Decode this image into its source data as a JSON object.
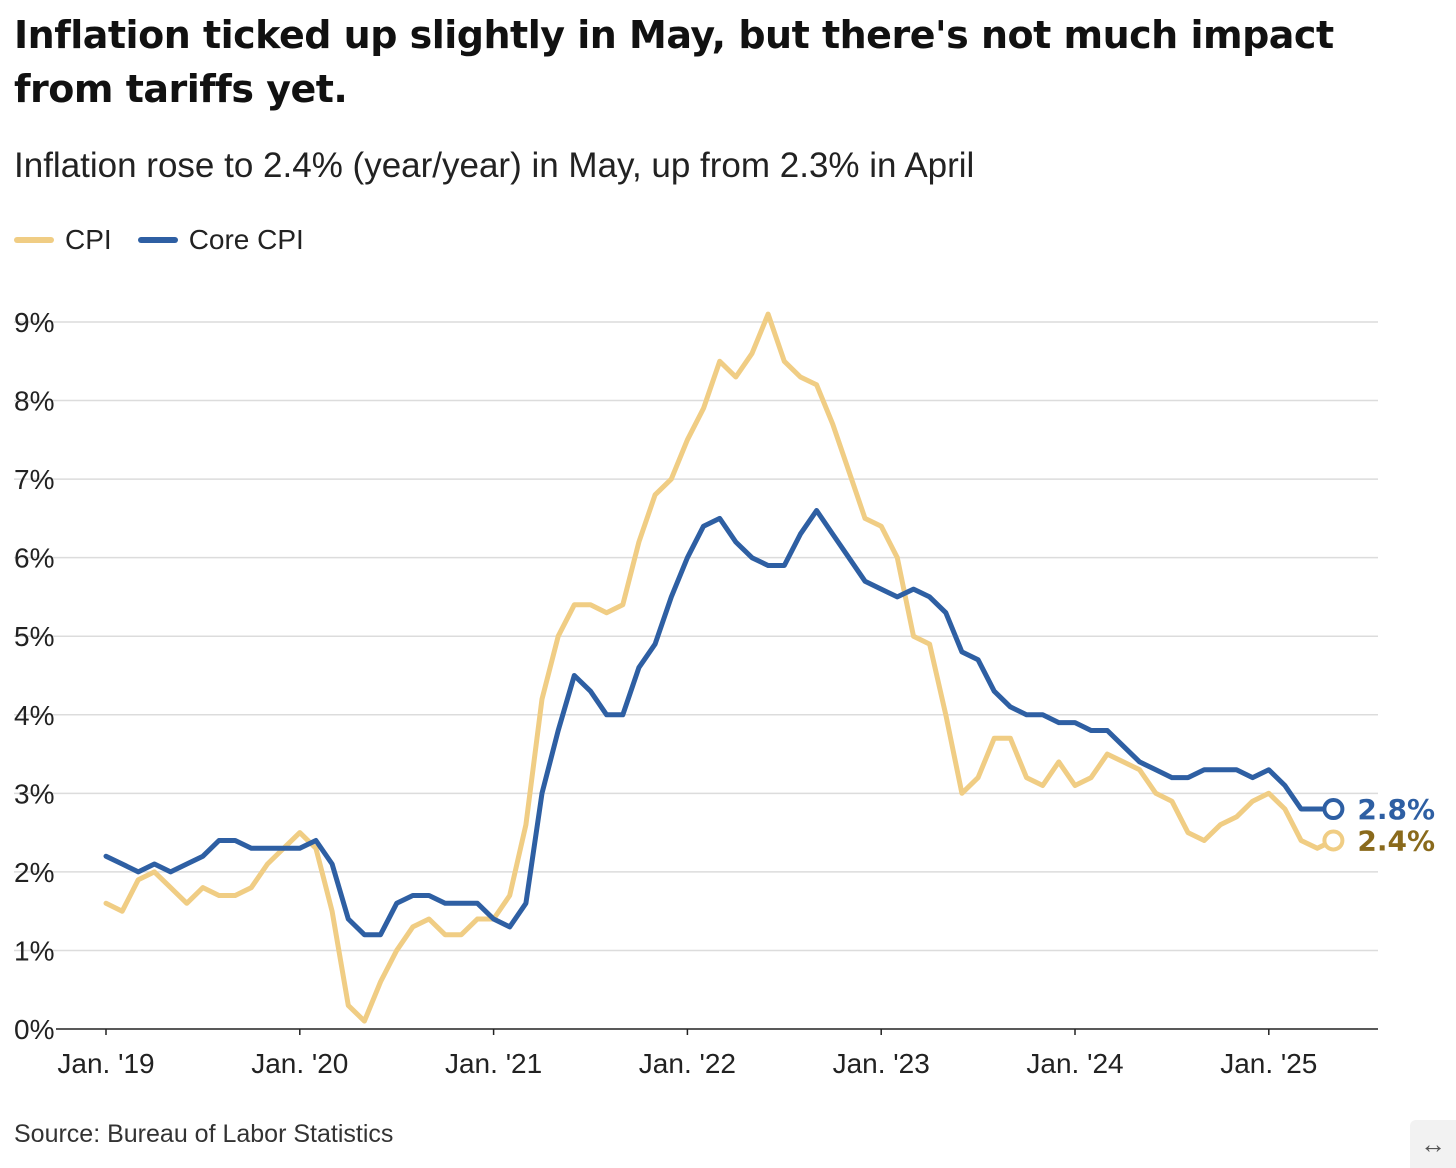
{
  "header": {
    "title": "Inflation ticked up slightly in May, but there's not much impact from tariffs yet.",
    "subtitle": "Inflation rose to 2.4% (year/year) in May, up from 2.3% in April"
  },
  "legend": [
    {
      "label": "CPI",
      "color": "#f0cd84"
    },
    {
      "label": "Core CPI",
      "color": "#2e5fa3"
    }
  ],
  "footer": {
    "source": "Source: Bureau of Labor Statistics",
    "expand_icon": "↔"
  },
  "colors": {
    "cpi": "#f0cd84",
    "core": "#2e5fa3",
    "cpi_label": "#8a6a1c",
    "grid": "#dcdcdc",
    "axis": "#222222"
  },
  "chart_data": {
    "type": "line",
    "x_start": "2019-01",
    "x_ticks": [
      {
        "label": "Jan. '19",
        "date": "2019-01"
      },
      {
        "label": "Jan. '20",
        "date": "2020-01"
      },
      {
        "label": "Jan. '21",
        "date": "2021-01"
      },
      {
        "label": "Jan. '22",
        "date": "2022-01"
      },
      {
        "label": "Jan. '23",
        "date": "2023-01"
      },
      {
        "label": "Jan. '24",
        "date": "2024-01"
      },
      {
        "label": "Jan. '25",
        "date": "2025-01"
      }
    ],
    "y_ticks": [
      0,
      1,
      2,
      3,
      4,
      5,
      6,
      7,
      8,
      9
    ],
    "y_tick_labels": [
      "0%",
      "1%",
      "2%",
      "3%",
      "4%",
      "5%",
      "6%",
      "7%",
      "8%",
      "9%"
    ],
    "ylim": [
      0,
      9
    ],
    "grid": true,
    "legend_position": "top-left",
    "series": [
      {
        "name": "CPI",
        "end_label": "2.4%",
        "values": [
          1.6,
          1.5,
          1.9,
          2.0,
          1.8,
          1.6,
          1.8,
          1.7,
          1.7,
          1.8,
          2.1,
          2.3,
          2.5,
          2.3,
          1.5,
          0.3,
          0.1,
          0.6,
          1.0,
          1.3,
          1.4,
          1.2,
          1.2,
          1.4,
          1.4,
          1.7,
          2.6,
          4.2,
          5.0,
          5.4,
          5.4,
          5.3,
          5.4,
          6.2,
          6.8,
          7.0,
          7.5,
          7.9,
          8.5,
          8.3,
          8.6,
          9.1,
          8.5,
          8.3,
          8.2,
          7.7,
          7.1,
          6.5,
          6.4,
          6.0,
          5.0,
          4.9,
          4.0,
          3.0,
          3.2,
          3.7,
          3.7,
          3.2,
          3.1,
          3.4,
          3.1,
          3.2,
          3.5,
          3.4,
          3.3,
          3.0,
          2.9,
          2.5,
          2.4,
          2.6,
          2.7,
          2.9,
          3.0,
          2.8,
          2.4,
          2.3,
          2.4
        ]
      },
      {
        "name": "Core CPI",
        "end_label": "2.8%",
        "values": [
          2.2,
          2.1,
          2.0,
          2.1,
          2.0,
          2.1,
          2.2,
          2.4,
          2.4,
          2.3,
          2.3,
          2.3,
          2.3,
          2.4,
          2.1,
          1.4,
          1.2,
          1.2,
          1.6,
          1.7,
          1.7,
          1.6,
          1.6,
          1.6,
          1.4,
          1.3,
          1.6,
          3.0,
          3.8,
          4.5,
          4.3,
          4.0,
          4.0,
          4.6,
          4.9,
          5.5,
          6.0,
          6.4,
          6.5,
          6.2,
          6.0,
          5.9,
          5.9,
          6.3,
          6.6,
          6.3,
          6.0,
          5.7,
          5.6,
          5.5,
          5.6,
          5.5,
          5.3,
          4.8,
          4.7,
          4.3,
          4.1,
          4.0,
          4.0,
          3.9,
          3.9,
          3.8,
          3.8,
          3.6,
          3.4,
          3.3,
          3.2,
          3.2,
          3.3,
          3.3,
          3.3,
          3.2,
          3.3,
          3.1,
          2.8,
          2.8,
          2.8
        ]
      }
    ],
    "title": "Inflation ticked up slightly in May, but there's not much impact from tariffs yet.",
    "subtitle": "Inflation rose to 2.4% (year/year) in May, up from 2.3% in April",
    "source": "Source: Bureau of Labor Statistics"
  }
}
